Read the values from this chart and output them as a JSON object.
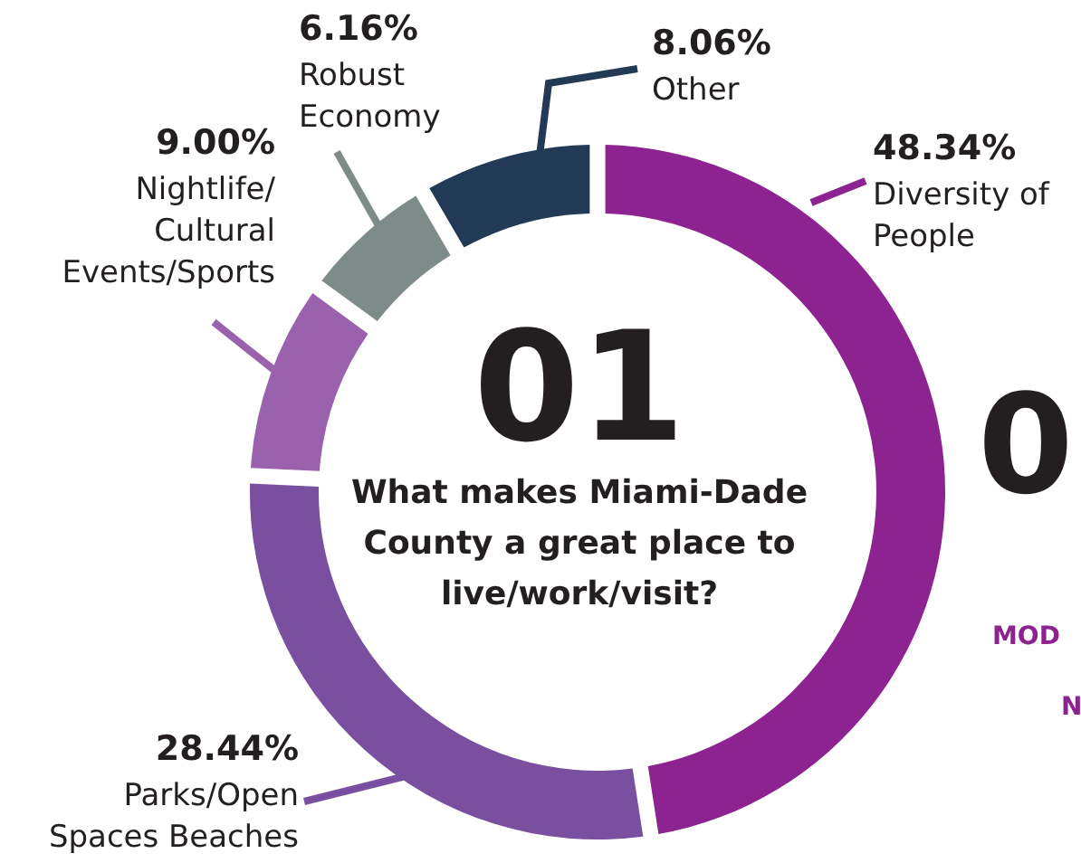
{
  "chart_data": {
    "type": "donut",
    "title": "01",
    "subtitle": "What makes Miami-Dade County a great place to live/work/visit?",
    "categories": [
      "Diversity of People",
      "Parks/Open Spaces Beaches",
      "Nightlife/Cultural Events/Sports",
      "Robust Economy",
      "Other"
    ],
    "values": [
      48.34,
      28.44,
      9.0,
      6.16,
      8.06
    ],
    "value_labels": [
      "48.34%",
      "28.44%",
      "9.00%",
      "6.16%",
      "8.06%"
    ],
    "colors": [
      "#8c2390",
      "#7b4f9f",
      "#9a61ad",
      "#7d8b89",
      "#223a56"
    ],
    "annotations": [
      "0",
      "MOD",
      "N"
    ]
  }
}
